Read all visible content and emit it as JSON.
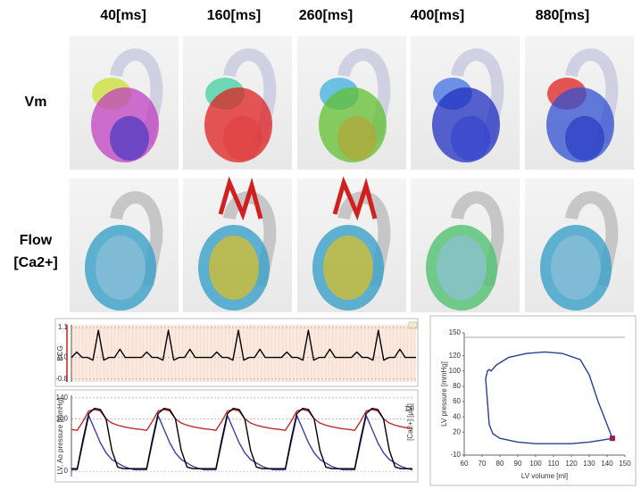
{
  "columns": [
    "40[ms]",
    "160[ms]",
    "260[ms]",
    "400[ms]",
    "880[ms]"
  ],
  "rows": [
    [
      "Vm"
    ],
    [
      "Flow",
      "[Ca2+]"
    ]
  ],
  "chart_data": [
    {
      "type": "line",
      "ylabel": "ECG",
      "ylim": [
        -0.9,
        1.2
      ],
      "yticks": [
        1.1,
        {
          "value": 0,
          "label": "0.0"
        },
        -0.8
      ],
      "grid": true,
      "series": [
        {
          "color": "#000000",
          "values": [
            0,
            0.2,
            0,
            0,
            -0.1,
            1.0,
            -0.1,
            0,
            0,
            0.3,
            0,
            0,
            0,
            0,
            0.2,
            0,
            0,
            -0.1,
            1.0,
            -0.1,
            0,
            0,
            0.3,
            0,
            0,
            0,
            0,
            0.2,
            0,
            0,
            -0.1,
            1.0,
            -0.1,
            0,
            0,
            0.3,
            0,
            0,
            0,
            0,
            0.2,
            0,
            0,
            -0.1,
            1.0,
            -0.1,
            0,
            0,
            0.3,
            0,
            0,
            0,
            0,
            0.2,
            0,
            0,
            -0.1,
            1.0,
            -0.1,
            0,
            0,
            0.3,
            0,
            0,
            0
          ]
        }
      ]
    },
    {
      "type": "line",
      "ylabel": "LV, Ao pressure [mmHg]",
      "y2label": "[Ca2+] [μM]",
      "ylim": [
        -10,
        145
      ],
      "yticks": [
        0,
        100,
        140
      ],
      "y2lim": [
        0,
        1.2
      ],
      "y2ticks": [
        {
          "value": 1,
          "label": "1.0"
        }
      ],
      "grid": true,
      "series": [
        {
          "color": "#c0282c",
          "values": [
            80,
            78,
            95,
            115,
            118,
            115,
            100,
            92,
            88,
            85,
            83,
            81,
            80,
            78,
            95,
            115,
            118,
            115,
            100,
            92,
            88,
            85,
            83,
            81,
            80,
            78,
            95,
            115,
            118,
            115,
            100,
            92,
            88,
            85,
            83,
            81,
            80,
            78,
            95,
            115,
            118,
            115,
            100,
            92,
            88,
            85,
            83,
            81,
            80,
            78,
            95,
            115,
            118,
            115,
            100,
            92,
            88,
            85,
            83,
            81
          ]
        },
        {
          "color": "#4040a0",
          "axis": "y2",
          "values": [
            0.1,
            0.1,
            0.5,
            0.9,
            0.7,
            0.5,
            0.35,
            0.25,
            0.2,
            0.15,
            0.12,
            0.1,
            0.1,
            0.1,
            0.5,
            0.9,
            0.7,
            0.5,
            0.35,
            0.25,
            0.2,
            0.15,
            0.12,
            0.1,
            0.1,
            0.1,
            0.5,
            0.9,
            0.7,
            0.5,
            0.35,
            0.25,
            0.2,
            0.15,
            0.12,
            0.1,
            0.1,
            0.1,
            0.5,
            0.9,
            0.7,
            0.5,
            0.35,
            0.25,
            0.2,
            0.15,
            0.12,
            0.1,
            0.1,
            0.1,
            0.5,
            0.9,
            0.7,
            0.5,
            0.35,
            0.25,
            0.2,
            0.15,
            0.12,
            0.1
          ]
        },
        {
          "color": "#000000",
          "values": [
            5,
            5,
            60,
            110,
            120,
            118,
            100,
            40,
            8,
            5,
            5,
            5,
            5,
            5,
            60,
            110,
            120,
            118,
            100,
            40,
            8,
            5,
            5,
            5,
            5,
            5,
            60,
            110,
            120,
            118,
            100,
            40,
            8,
            5,
            5,
            5,
            5,
            5,
            60,
            110,
            120,
            118,
            100,
            40,
            8,
            5,
            5,
            5,
            5,
            5,
            60,
            110,
            120,
            118,
            100,
            40,
            8,
            5,
            5,
            5
          ]
        }
      ]
    },
    {
      "type": "line",
      "xlabel": "LV volume [ml]",
      "ylabel": "LV pressure [mmHg]",
      "xlim": [
        60,
        150
      ],
      "xticks": [
        60,
        70,
        80,
        90,
        100,
        110,
        120,
        130,
        140,
        150
      ],
      "ylim": [
        -10,
        150
      ],
      "yticks": [
        -10,
        20,
        40,
        60,
        80,
        100,
        120,
        150
      ],
      "series": [
        {
          "color": "#2a3f8f",
          "x": [
            143,
            140,
            135,
            130,
            125,
            115,
            105,
            95,
            85,
            78,
            75,
            74,
            73,
            72,
            73,
            74,
            76,
            80,
            90,
            100,
            110,
            120,
            130,
            138,
            143
          ],
          "values": [
            12,
            30,
            60,
            95,
            115,
            123,
            125,
            123,
            118,
            108,
            100,
            102,
            100,
            90,
            60,
            30,
            18,
            12,
            7,
            5,
            5,
            5,
            7,
            10,
            12
          ]
        }
      ]
    }
  ]
}
